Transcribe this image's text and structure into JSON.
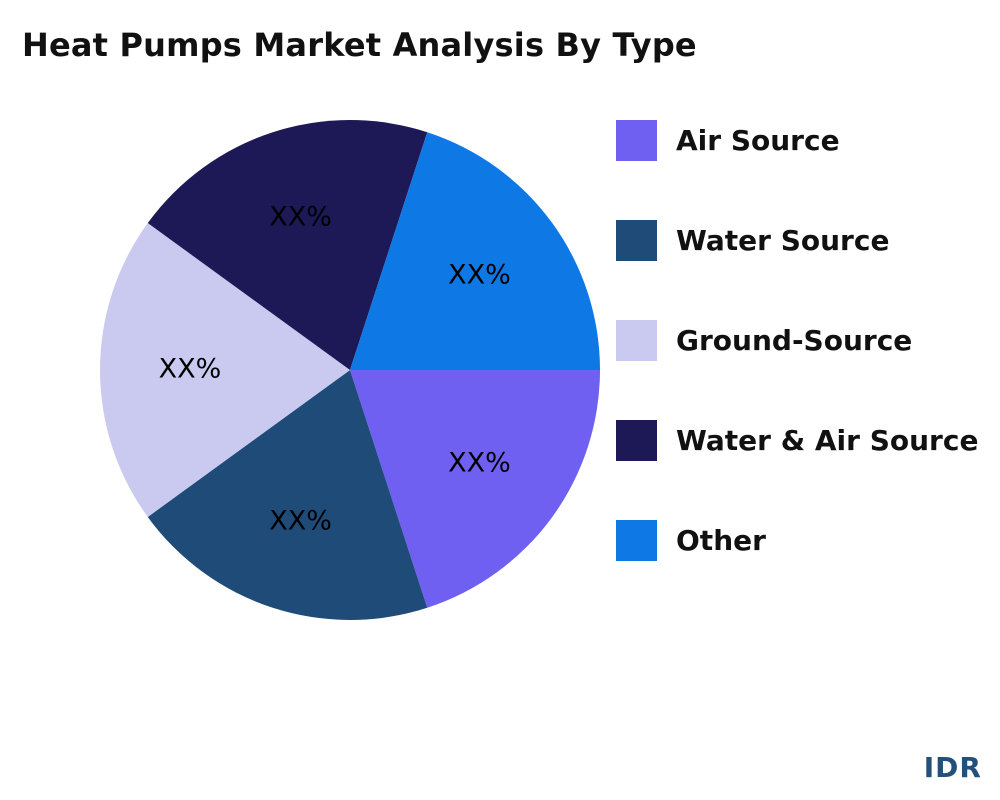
{
  "chart_data": {
    "type": "pie",
    "title": "Heat Pumps Market Analysis By Type",
    "slices": [
      {
        "name": "Air Source",
        "value": 20,
        "label": "XX%",
        "color": "#7060F2"
      },
      {
        "name": "Water Source",
        "value": 20,
        "label": "XX%",
        "color": "#1F4B79"
      },
      {
        "name": "Ground-Source",
        "value": 20,
        "label": "XX%",
        "color": "#CACAF0"
      },
      {
        "name": "Water & Air Source",
        "value": 20,
        "label": "XX%",
        "color": "#1D1856"
      },
      {
        "name": "Other",
        "value": 20,
        "label": "XX%",
        "color": "#0E78E5"
      }
    ],
    "legend_position": "right"
  },
  "brand": {
    "logo_text": "IDR",
    "color": "#23507a"
  }
}
